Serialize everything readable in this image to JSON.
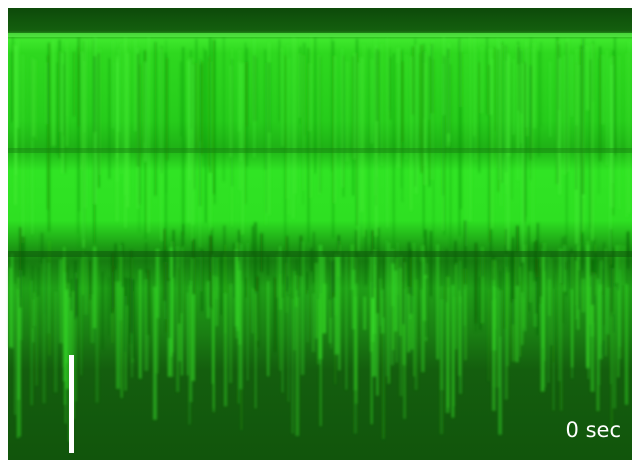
{
  "timestamp": "0 sec"
}
